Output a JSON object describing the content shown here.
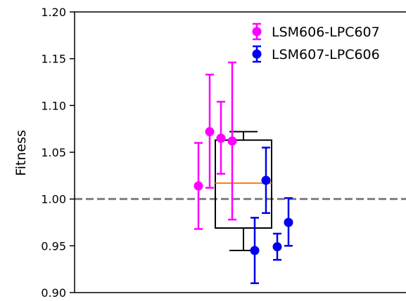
{
  "chart_data": {
    "type": "scatter",
    "title": "",
    "xlabel": "",
    "ylabel": "Fitness",
    "ylim": [
      0.9,
      1.2
    ],
    "yticks": [
      "0.90",
      "0.95",
      "1.00",
      "1.05",
      "1.10",
      "1.15",
      "1.20"
    ],
    "reference_line": {
      "y": 1.0,
      "style": "dashed",
      "color": "#808080"
    },
    "legend_position": "top-right",
    "grid": false,
    "series": [
      {
        "name": "LSM606-LPC607",
        "color": "#ff00ff",
        "points": [
          {
            "x": 1,
            "y": 1.014,
            "ylow": 0.968,
            "yhigh": 1.06
          },
          {
            "x": 2,
            "y": 1.072,
            "ylow": 1.012,
            "yhigh": 1.133
          },
          {
            "x": 3,
            "y": 1.065,
            "ylow": 1.027,
            "yhigh": 1.104
          },
          {
            "x": 4,
            "y": 1.062,
            "ylow": 0.978,
            "yhigh": 1.146
          }
        ]
      },
      {
        "name": "LSM607-LPC606",
        "color": "#0000ee",
        "points": [
          {
            "x": 5,
            "y": 0.945,
            "ylow": 0.91,
            "yhigh": 0.98
          },
          {
            "x": 6,
            "y": 1.02,
            "ylow": 0.985,
            "yhigh": 1.055
          },
          {
            "x": 7,
            "y": 0.949,
            "ylow": 0.935,
            "yhigh": 0.963
          },
          {
            "x": 8,
            "y": 0.975,
            "ylow": 0.95,
            "yhigh": 1.001
          }
        ]
      }
    ],
    "boxplot": {
      "whisker_low": 0.945,
      "q1": 0.969,
      "median": 1.017,
      "q3": 1.063,
      "whisker_high": 1.072,
      "box_color": "#000000",
      "median_color": "#ff7f0e"
    }
  }
}
